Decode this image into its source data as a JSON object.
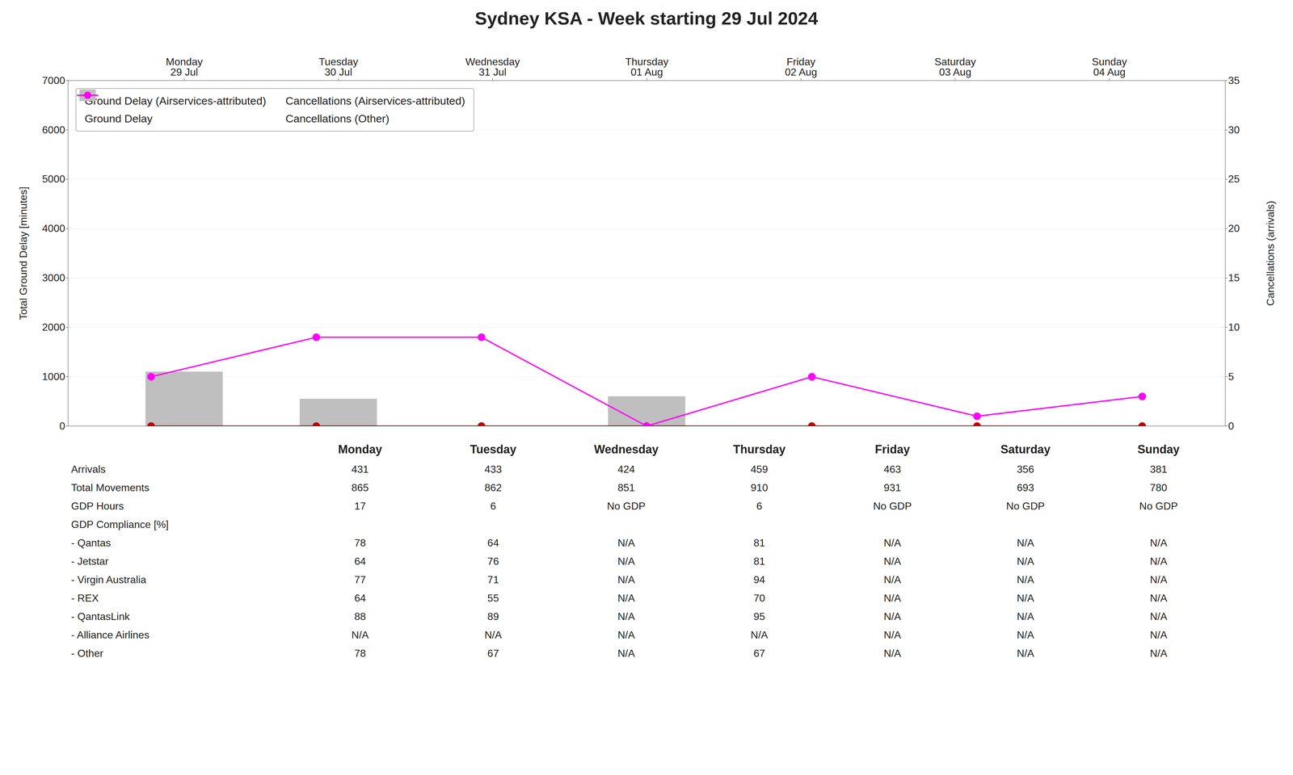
{
  "chart_data": {
    "type": "bar",
    "title": "Sydney KSA - Week starting 29 Jul 2024",
    "categories": [
      "Monday\n29 Jul",
      "Tuesday\n30 Jul",
      "Wednesday\n31 Jul",
      "Thursday\n01 Aug",
      "Friday\n02 Aug",
      "Saturday\n03 Aug",
      "Sunday\n04 Aug"
    ],
    "series": [
      {
        "name": "Ground Delay (Airservices-attributed)",
        "type": "bar",
        "color": "#4472c4",
        "values": [
          0,
          0,
          0,
          0,
          0,
          0,
          0
        ]
      },
      {
        "name": "Ground Delay",
        "type": "bar",
        "color": "#bfbfbf",
        "values": [
          1100,
          550,
          0,
          600,
          0,
          0,
          0
        ]
      },
      {
        "name": "Cancellations (Airservices-attributed)",
        "type": "line",
        "axis": "y2",
        "color": "#c00000",
        "marker": "circle",
        "values": [
          0,
          0,
          0,
          0,
          0,
          0,
          0
        ]
      },
      {
        "name": "Cancellations (Other)",
        "type": "line",
        "axis": "y2",
        "color": "#ff00ff",
        "marker": "circle",
        "values": [
          5,
          9,
          9,
          0,
          5,
          1,
          3
        ]
      }
    ],
    "stacked": false,
    "ylabel": "Total Ground Delay [minutes]",
    "y2label": "Cancellations (arrivals)",
    "ylim": [
      0,
      7000
    ],
    "yticks": [
      0,
      1000,
      2000,
      3000,
      4000,
      5000,
      6000,
      7000
    ],
    "y2lim": [
      0,
      35
    ],
    "y2ticks": [
      0,
      5,
      10,
      15,
      20,
      25,
      30,
      35
    ],
    "grid": true,
    "legend": "upper left",
    "table": {
      "columns": [
        "Monday",
        "Tuesday",
        "Wednesday",
        "Thursday",
        "Friday",
        "Saturday",
        "Sunday"
      ],
      "rows": [
        {
          "label": "Arrivals",
          "values": [
            431,
            433,
            424,
            459,
            463,
            356,
            381
          ]
        },
        {
          "label": "Total Movements",
          "values": [
            865,
            862,
            851,
            910,
            931,
            693,
            780
          ]
        },
        {
          "label": "GDP Hours",
          "values": [
            17,
            6,
            "No GDP",
            6,
            "No GDP",
            "No GDP",
            "No GDP"
          ]
        },
        {
          "label": "GDP Compliance [%]",
          "values": [
            null,
            null,
            null,
            null,
            null,
            null,
            null
          ]
        },
        {
          "label": " - Qantas",
          "values": [
            78,
            64,
            "N/A",
            81,
            "N/A",
            "N/A",
            "N/A"
          ]
        },
        {
          "label": " - Jetstar",
          "values": [
            64,
            76,
            "N/A",
            81,
            "N/A",
            "N/A",
            "N/A"
          ]
        },
        {
          "label": " - Virgin Australia",
          "values": [
            77,
            71,
            "N/A",
            94,
            "N/A",
            "N/A",
            "N/A"
          ]
        },
        {
          "label": " - REX",
          "values": [
            64,
            55,
            "N/A",
            70,
            "N/A",
            "N/A",
            "N/A"
          ]
        },
        {
          "label": " - QantasLink",
          "values": [
            88,
            89,
            "N/A",
            95,
            "N/A",
            "N/A",
            "N/A"
          ]
        },
        {
          "label": " - Alliance Airlines",
          "values": [
            "N/A",
            "N/A",
            "N/A",
            "N/A",
            "N/A",
            "N/A",
            "N/A"
          ]
        },
        {
          "label": " - Other",
          "values": [
            78,
            67,
            "N/A",
            67,
            "N/A",
            "N/A",
            "N/A"
          ]
        }
      ]
    }
  }
}
